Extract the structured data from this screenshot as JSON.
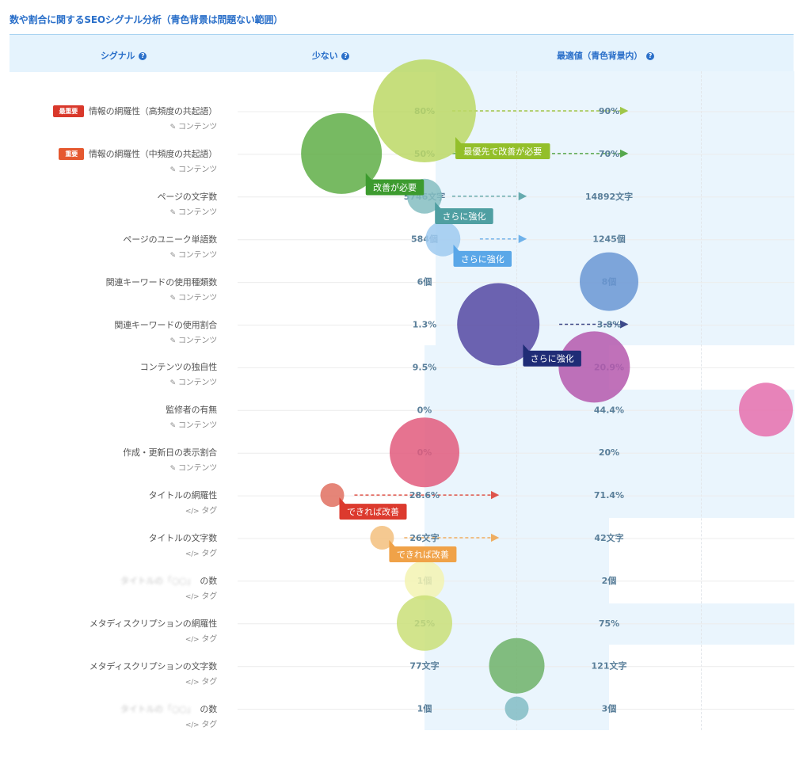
{
  "title": "数や割合に関するSEOシグナル分析（青色背景は問題ない範囲）",
  "columns": {
    "signal": "シグナル",
    "low": "少ない",
    "optimal": "最適値（青色背景内）",
    "help_icon": "question-circle-icon"
  },
  "badges": {
    "most_important": "最重要",
    "important": "重要"
  },
  "categories": {
    "content": "コンテンツ",
    "tag": "タグ"
  },
  "colors": {
    "accent": "#2a6fc9",
    "optimal_bg": "#eaf5fd",
    "header_bg": "#e5f3fd",
    "badge_most": "#d9382b",
    "badge_important": "#e5582f"
  },
  "chart_data": {
    "type": "bubble-comparison",
    "title": "数や割合に関するSEOシグナル分析（青色背景は問題ない範囲）",
    "rows": [
      {
        "label": "情報の網羅性（高頻度の共起語）",
        "badge": "most_important",
        "category": "content",
        "low": "80%",
        "optimal": "90%",
        "position": 0.0,
        "size": 130,
        "color": "#bcd865",
        "arrow": [
          0.15,
          1.1
        ],
        "callout": "最優先で改善が必要",
        "callout_color": "#93bf2a"
      },
      {
        "label": "情報の網羅性（中頻度の共起語）",
        "badge": "important",
        "category": "content",
        "low": "50%",
        "optimal": "70%",
        "position": -0.45,
        "size": 102,
        "color": "#5fae47",
        "arrow": [
          0.15,
          1.1
        ],
        "callout": "改善が必要",
        "callout_color": "#3d9b2f"
      },
      {
        "label": "ページの文字数",
        "category": "content",
        "low": "5746文字",
        "optimal": "14892文字",
        "position": 0.0,
        "size": 44,
        "color": "#84bdc1",
        "arrow": [
          0.15,
          0.55
        ],
        "callout": "さらに強化",
        "callout_color": "#4f9fa2"
      },
      {
        "label": "ページのユニーク単語数",
        "category": "content",
        "low": "584個",
        "optimal": "1245個",
        "position": 0.1,
        "size": 44,
        "color": "#9fcaf0",
        "arrow": [
          0.3,
          0.55
        ],
        "callout": "さらに強化",
        "callout_color": "#5aa7e8"
      },
      {
        "label": "関連キーワードの使用種類数",
        "category": "content",
        "low": "6個",
        "optimal": "8個",
        "position": 1.0,
        "size": 74,
        "color": "#6a97d3"
      },
      {
        "label": "関連キーワードの使用割合",
        "category": "content",
        "low": "1.3%",
        "optimal": "3.8%",
        "position": 0.4,
        "size": 104,
        "color": "#5548a2",
        "arrow": [
          0.73,
          1.1
        ],
        "callout": "さらに強化",
        "callout_color": "#1f2c76"
      },
      {
        "label": "コンテンツの独自性",
        "category": "content",
        "low": "9.5%",
        "optimal": "20.9%",
        "position": 0.92,
        "size": 90,
        "color": "#b558ad"
      },
      {
        "label": "監修者の有無",
        "category": "content",
        "low": "0%",
        "optimal": "44.4%",
        "position": 1.85,
        "size": 68,
        "color": "#e66ead"
      },
      {
        "label": "作成・更新日の表示割合",
        "category": "content",
        "low": "0%",
        "optimal": "20%",
        "position": 0.0,
        "size": 88,
        "color": "#e25a7d"
      },
      {
        "label": "タイトルの網羅性",
        "category": "tag",
        "low": "28.6%",
        "optimal": "71.4%",
        "position": -0.5,
        "size": 30,
        "color": "#e07060",
        "arrow": [
          -0.38,
          0.4
        ],
        "callout": "できれば改善",
        "callout_color": "#dc3a2e"
      },
      {
        "label": "タイトルの文字数",
        "category": "tag",
        "low": "26文字",
        "optimal": "42文字",
        "position": -0.23,
        "size": 30,
        "color": "#f3c07e",
        "arrow": [
          -0.11,
          0.4
        ],
        "callout": "できれば改善",
        "callout_color": "#f0a248"
      },
      {
        "label": "の数",
        "blurred_prefix": "タイトルの「○○」",
        "category": "tag",
        "low": "1個",
        "optimal": "2個",
        "position": 0.0,
        "size": 50,
        "color": "#f3f3b2"
      },
      {
        "label": "メタディスクリプションの網羅性",
        "category": "tag",
        "low": "25%",
        "optimal": "75%",
        "position": 0.0,
        "size": 70,
        "color": "#cadf78"
      },
      {
        "label": "メタディスクリプションの文字数",
        "category": "tag",
        "low": "77文字",
        "optimal": "121文字",
        "position": 0.5,
        "size": 70,
        "color": "#6fb268"
      },
      {
        "label": "の数",
        "blurred_prefix": "タイトルの「○○」",
        "category": "tag",
        "low": "1個",
        "optimal": "3個",
        "position": 0.5,
        "size": 30,
        "color": "#83bcc4"
      }
    ]
  }
}
